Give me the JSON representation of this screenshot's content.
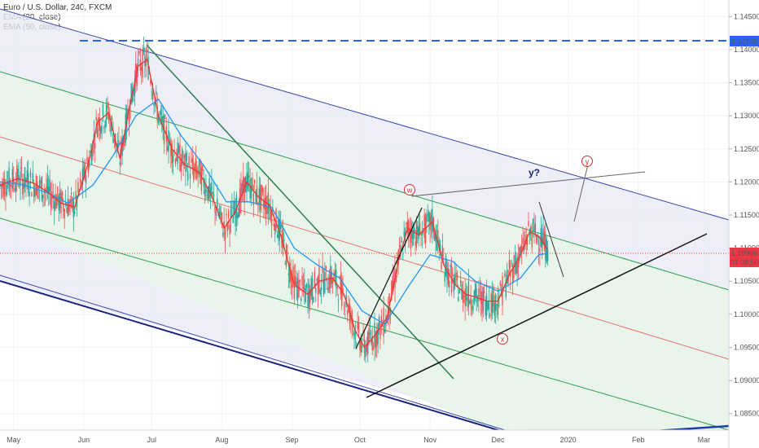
{
  "legend": {
    "symbol": "Euro / U.S. Dollar, 240, FXCM",
    "ema20": "EMA (20, close)",
    "ema50": "EMA (50, close)"
  },
  "chart_data": {
    "type": "line",
    "title": "Euro / U.S. Dollar, 240, FXCM",
    "x_tick_labels": [
      "May",
      "Jun",
      "Jul",
      "Aug",
      "Sep",
      "Oct",
      "Nov",
      "Dec",
      "2020",
      "Feb",
      "Mar"
    ],
    "x_tick_dates": [
      "2019-05-01",
      "2019-06-01",
      "2019-07-01",
      "2019-08-01",
      "2019-09-01",
      "2019-10-01",
      "2019-11-01",
      "2019-12-01",
      "2020-01-01",
      "2020-02-01",
      "2020-03-01"
    ],
    "y_tick_labels": [
      "1.14500",
      "1.14000",
      "1.13500",
      "1.13000",
      "1.12500",
      "1.12000",
      "1.11500",
      "1.11000",
      "1.10500",
      "1.10000",
      "1.09500",
      "1.09000",
      "1.08500"
    ],
    "ylim": [
      1.0825,
      1.1475
    ],
    "xlim": [
      "2019-04-25",
      "2020-03-12"
    ],
    "price_labels": {
      "resistance": "1.14136",
      "current": "1.10966",
      "countdown": "03:08:50"
    },
    "horizontal_levels": [
      {
        "value": 1.14136,
        "style": "dashed",
        "color": "#2962ff"
      },
      {
        "value": 1.10966,
        "style": "dotted",
        "color": "#f23645"
      }
    ],
    "series": [
      {
        "name": "EMA (20, close)",
        "color": "#e53935",
        "points": [
          [
            "2019-04-25",
            1.1195
          ],
          [
            "2019-05-03",
            1.1205
          ],
          [
            "2019-05-10",
            1.1198
          ],
          [
            "2019-05-16",
            1.1185
          ],
          [
            "2019-05-22",
            1.1168
          ],
          [
            "2019-05-28",
            1.1162
          ],
          [
            "2019-06-04",
            1.124
          ],
          [
            "2019-06-07",
            1.129
          ],
          [
            "2019-06-12",
            1.1305
          ],
          [
            "2019-06-17",
            1.1235
          ],
          [
            "2019-06-21",
            1.131
          ],
          [
            "2019-06-25",
            1.1375
          ],
          [
            "2019-06-29",
            1.1385
          ],
          [
            "2019-07-04",
            1.13
          ],
          [
            "2019-07-10",
            1.125
          ],
          [
            "2019-07-16",
            1.1225
          ],
          [
            "2019-07-22",
            1.1215
          ],
          [
            "2019-07-28",
            1.1175
          ],
          [
            "2019-08-02",
            1.113
          ],
          [
            "2019-08-07",
            1.1155
          ],
          [
            "2019-08-12",
            1.12
          ],
          [
            "2019-08-17",
            1.1178
          ],
          [
            "2019-08-22",
            1.1165
          ],
          [
            "2019-08-27",
            1.112
          ],
          [
            "2019-09-02",
            1.1045
          ],
          [
            "2019-09-08",
            1.103
          ],
          [
            "2019-09-13",
            1.105
          ],
          [
            "2019-09-19",
            1.1055
          ],
          [
            "2019-09-24",
            1.103
          ],
          [
            "2019-09-29",
            1.0975
          ],
          [
            "2019-10-03",
            1.095
          ],
          [
            "2019-10-08",
            1.097
          ],
          [
            "2019-10-13",
            1.0995
          ],
          [
            "2019-10-18",
            1.108
          ],
          [
            "2019-10-22",
            1.113
          ],
          [
            "2019-10-27",
            1.112
          ],
          [
            "2019-11-02",
            1.114
          ],
          [
            "2019-11-07",
            1.1075
          ],
          [
            "2019-11-12",
            1.1045
          ],
          [
            "2019-11-17",
            1.103
          ],
          [
            "2019-11-22",
            1.1025
          ],
          [
            "2019-11-26",
            1.102
          ],
          [
            "2019-12-01",
            1.102
          ],
          [
            "2019-12-06",
            1.106
          ],
          [
            "2019-12-11",
            1.109
          ],
          [
            "2019-12-15",
            1.1125
          ],
          [
            "2019-12-19",
            1.1118
          ],
          [
            "2019-12-23",
            1.1098
          ]
        ]
      },
      {
        "name": "EMA (50, close)",
        "color": "#2196f3",
        "points": [
          [
            "2019-04-25",
            1.12
          ],
          [
            "2019-05-05",
            1.1196
          ],
          [
            "2019-05-15",
            1.1185
          ],
          [
            "2019-05-25",
            1.1168
          ],
          [
            "2019-06-05",
            1.1195
          ],
          [
            "2019-06-14",
            1.124
          ],
          [
            "2019-06-24",
            1.13
          ],
          [
            "2019-07-04",
            1.1325
          ],
          [
            "2019-07-14",
            1.127
          ],
          [
            "2019-07-24",
            1.1225
          ],
          [
            "2019-08-03",
            1.117
          ],
          [
            "2019-08-13",
            1.117
          ],
          [
            "2019-08-23",
            1.1162
          ],
          [
            "2019-09-02",
            1.11
          ],
          [
            "2019-09-12",
            1.1075
          ],
          [
            "2019-09-22",
            1.1055
          ],
          [
            "2019-10-02",
            1.1005
          ],
          [
            "2019-10-12",
            1.0985
          ],
          [
            "2019-10-22",
            1.104
          ],
          [
            "2019-11-01",
            1.109
          ],
          [
            "2019-11-11",
            1.108
          ],
          [
            "2019-11-21",
            1.105
          ],
          [
            "2019-12-01",
            1.1035
          ],
          [
            "2019-12-11",
            1.1055
          ],
          [
            "2019-12-19",
            1.109
          ],
          [
            "2019-12-23",
            1.1092
          ]
        ]
      }
    ],
    "grid": true,
    "annotations": [
      "w",
      "x",
      "y",
      "y?"
    ]
  }
}
